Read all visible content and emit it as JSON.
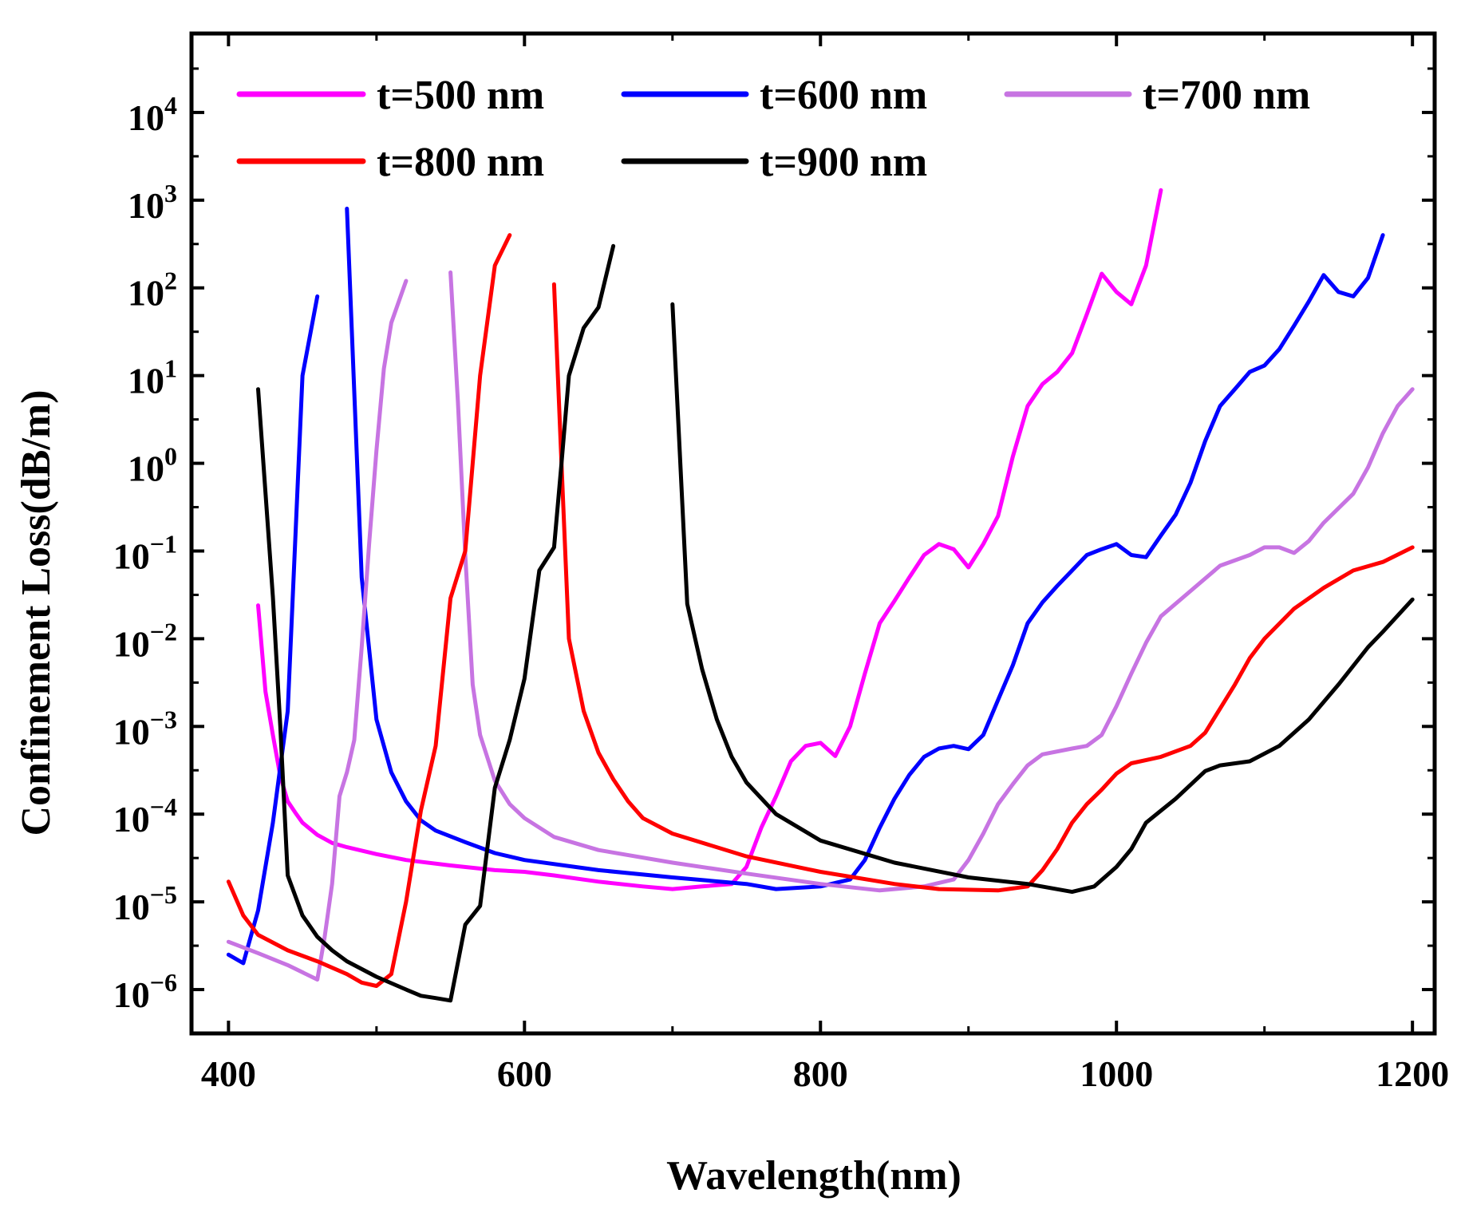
{
  "chart_data": {
    "type": "line",
    "title": "",
    "xlabel": "Wavelength(nm)",
    "ylabel": "Confinement Loss(dB/m)",
    "xlim": [
      375,
      1215
    ],
    "ylim_log10": [
      -6.5,
      4.9
    ],
    "yscale": "log",
    "x_ticks": [
      400,
      600,
      800,
      1000,
      1200
    ],
    "x_tick_labels": [
      "400",
      "600",
      "800",
      "1000",
      "1200"
    ],
    "y_ticks_log10": [
      -6,
      -5,
      -4,
      -3,
      -2,
      -1,
      0,
      1,
      2,
      3,
      4
    ],
    "y_tick_base": "10",
    "y_tick_exponents": [
      "−6",
      "−5",
      "−4",
      "−3",
      "−2",
      "−1",
      "0",
      "1",
      "2",
      "3",
      "4"
    ],
    "legend_position": "top",
    "series": [
      {
        "name": "t=500 nm",
        "color": "#ff00ff",
        "segments": [
          [
            [
              420,
              0.024
            ],
            [
              425,
              0.0025
            ],
            [
              430,
              0.0008
            ],
            [
              435,
              0.00027
            ],
            [
              440,
              0.00014
            ],
            [
              445,
              0.000105
            ],
            [
              450,
              8e-05
            ],
            [
              460,
              5.8e-05
            ],
            [
              470,
              4.7e-05
            ],
            [
              480,
              4.2e-05
            ],
            [
              500,
              3.5e-05
            ],
            [
              520,
              3e-05
            ],
            [
              550,
              2.6e-05
            ],
            [
              580,
              2.3e-05
            ],
            [
              600,
              2.2e-05
            ],
            [
              620,
              2e-05
            ],
            [
              650,
              1.7e-05
            ],
            [
              680,
              1.5e-05
            ],
            [
              700,
              1.4e-05
            ],
            [
              720,
              1.5e-05
            ],
            [
              740,
              1.6e-05
            ],
            [
              750,
              2.5e-05
            ],
            [
              760,
              7e-05
            ],
            [
              770,
              0.00016
            ],
            [
              780,
              0.0004
            ],
            [
              790,
              0.0006
            ],
            [
              800,
              0.00065
            ],
            [
              810,
              0.00046
            ],
            [
              820,
              0.001
            ],
            [
              830,
              0.004
            ],
            [
              840,
              0.015
            ],
            [
              850,
              0.027
            ],
            [
              860,
              0.05
            ],
            [
              870,
              0.09
            ],
            [
              880,
              0.12
            ],
            [
              890,
              0.105
            ],
            [
              900,
              0.065
            ],
            [
              910,
              0.12
            ],
            [
              920,
              0.25
            ],
            [
              930,
              1.2
            ],
            [
              940,
              4.5
            ],
            [
              950,
              8
            ],
            [
              960,
              11.0
            ],
            [
              970,
              18.0
            ],
            [
              980,
              50.0
            ],
            [
              990,
              145.0
            ],
            [
              1000,
              90.0
            ],
            [
              1010,
              65.0
            ],
            [
              1020,
              180.0
            ],
            [
              1030,
              1300.0
            ]
          ]
        ]
      },
      {
        "name": "t=600 nm",
        "color": "#0000ff",
        "segments": [
          [
            [
              400,
              2.5e-06
            ],
            [
              410,
              2e-06
            ],
            [
              420,
              8e-06
            ],
            [
              430,
              8e-05
            ],
            [
              440,
              0.0015
            ],
            [
              450,
              10.0
            ],
            [
              460,
              80.0
            ]
          ],
          [
            [
              480,
              800.0
            ],
            [
              490,
              0.05
            ],
            [
              500,
              0.0012
            ],
            [
              510,
              0.0003
            ],
            [
              520,
              0.00014
            ],
            [
              530,
              8.5e-05
            ],
            [
              540,
              6.5e-05
            ],
            [
              560,
              4.8e-05
            ],
            [
              580,
              3.6e-05
            ],
            [
              600,
              3e-05
            ],
            [
              650,
              2.3e-05
            ],
            [
              700,
              1.9e-05
            ],
            [
              750,
              1.6e-05
            ],
            [
              770,
              1.4e-05
            ],
            [
              800,
              1.5e-05
            ],
            [
              820,
              1.8e-05
            ],
            [
              830,
              3e-05
            ],
            [
              840,
              7e-05
            ],
            [
              850,
              0.00015
            ],
            [
              860,
              0.00028
            ],
            [
              870,
              0.00045
            ],
            [
              880,
              0.00056
            ],
            [
              890,
              0.0006
            ],
            [
              900,
              0.00055
            ],
            [
              910,
              0.0008
            ],
            [
              920,
              0.002
            ],
            [
              930,
              0.005
            ],
            [
              940,
              0.015
            ],
            [
              950,
              0.026
            ],
            [
              960,
              0.04
            ],
            [
              970,
              0.06
            ],
            [
              980,
              0.09
            ],
            [
              990,
              0.105
            ],
            [
              1000,
              0.12
            ],
            [
              1010,
              0.09
            ],
            [
              1020,
              0.085
            ],
            [
              1030,
              0.15
            ],
            [
              1040,
              0.26
            ],
            [
              1050,
              0.6
            ],
            [
              1060,
              1.8
            ],
            [
              1070,
              4.5
            ],
            [
              1080,
              7
            ],
            [
              1090,
              11.0
            ],
            [
              1100,
              13.0
            ],
            [
              1110,
              20.0
            ],
            [
              1120,
              37.0
            ],
            [
              1130,
              70.0
            ],
            [
              1140,
              140.0
            ],
            [
              1150,
              90.0
            ],
            [
              1160,
              80.0
            ],
            [
              1170,
              130.0
            ],
            [
              1180,
              400.0
            ]
          ]
        ]
      },
      {
        "name": "t=700 nm",
        "color": "#c774e2",
        "segments": [
          [
            [
              400,
              3.5e-06
            ],
            [
              420,
              2.6e-06
            ],
            [
              440,
              1.9e-06
            ],
            [
              460,
              1.3e-06
            ],
            [
              465,
              4e-06
            ],
            [
              470,
              1.6e-05
            ],
            [
              475,
              0.00016
            ],
            [
              480,
              0.0003
            ],
            [
              485,
              0.0007
            ],
            [
              490,
              0.008
            ],
            [
              495,
              0.12
            ],
            [
              500,
              1.4
            ],
            [
              505,
              12.0
            ],
            [
              510,
              40.0
            ],
            [
              520,
              120.0
            ]
          ],
          [
            [
              550,
              150.0
            ],
            [
              555,
              5
            ],
            [
              560,
              0.09
            ],
            [
              565,
              0.003
            ],
            [
              570,
              0.0008
            ],
            [
              580,
              0.00024
            ],
            [
              590,
              0.00013
            ],
            [
              600,
              9e-05
            ],
            [
              620,
              5.5e-05
            ],
            [
              650,
              3.9e-05
            ],
            [
              700,
              2.8e-05
            ],
            [
              750,
              2.1e-05
            ],
            [
              800,
              1.6e-05
            ],
            [
              840,
              1.35e-05
            ],
            [
              870,
              1.5e-05
            ],
            [
              890,
              1.8e-05
            ],
            [
              900,
              3e-05
            ],
            [
              910,
              6e-05
            ],
            [
              920,
              0.00013
            ],
            [
              930,
              0.00022
            ],
            [
              940,
              0.00036
            ],
            [
              950,
              0.00048
            ],
            [
              970,
              0.00056
            ],
            [
              980,
              0.0006
            ],
            [
              990,
              0.0008
            ],
            [
              1000,
              0.0017
            ],
            [
              1010,
              0.004
            ],
            [
              1020,
              0.009
            ],
            [
              1030,
              0.018
            ],
            [
              1050,
              0.035
            ],
            [
              1070,
              0.068
            ],
            [
              1090,
              0.09
            ],
            [
              1100,
              0.11
            ],
            [
              1110,
              0.11
            ],
            [
              1120,
              0.095
            ],
            [
              1130,
              0.13
            ],
            [
              1140,
              0.21
            ],
            [
              1160,
              0.45
            ],
            [
              1170,
              0.9
            ],
            [
              1180,
              2.2
            ],
            [
              1190,
              4.5
            ],
            [
              1200,
              7
            ]
          ]
        ]
      },
      {
        "name": "t=800 nm",
        "color": "#ff0000",
        "segments": [
          [
            [
              400,
              1.7e-05
            ],
            [
              410,
              7e-06
            ],
            [
              420,
              4.2e-06
            ],
            [
              440,
              2.8e-06
            ],
            [
              460,
              2.1e-06
            ],
            [
              480,
              1.5e-06
            ],
            [
              490,
              1.2e-06
            ],
            [
              500,
              1.1e-06
            ],
            [
              510,
              1.5e-06
            ],
            [
              520,
              1e-05
            ],
            [
              530,
              0.00011
            ],
            [
              540,
              0.0006
            ],
            [
              550,
              0.029
            ],
            [
              560,
              0.1
            ],
            [
              570,
              10.0
            ],
            [
              580,
              180.0
            ],
            [
              590,
              400.0
            ]
          ],
          [
            [
              620,
              110.0
            ],
            [
              625,
              1
            ],
            [
              630,
              0.01
            ],
            [
              640,
              0.0015
            ],
            [
              650,
              0.0005
            ],
            [
              660,
              0.00025
            ],
            [
              670,
              0.00014
            ],
            [
              680,
              9e-05
            ],
            [
              700,
              6e-05
            ],
            [
              750,
              3.3e-05
            ],
            [
              800,
              2.2e-05
            ],
            [
              850,
              1.6e-05
            ],
            [
              880,
              1.4e-05
            ],
            [
              920,
              1.35e-05
            ],
            [
              940,
              1.5e-05
            ],
            [
              950,
              2.3e-05
            ],
            [
              960,
              4e-05
            ],
            [
              970,
              8e-05
            ],
            [
              980,
              0.00013
            ],
            [
              990,
              0.00019
            ],
            [
              1000,
              0.00029
            ],
            [
              1010,
              0.00038
            ],
            [
              1030,
              0.00045
            ],
            [
              1050,
              0.0006
            ],
            [
              1060,
              0.00085
            ],
            [
              1070,
              0.0016
            ],
            [
              1080,
              0.003
            ],
            [
              1090,
              0.006
            ],
            [
              1100,
              0.01
            ],
            [
              1120,
              0.022
            ],
            [
              1140,
              0.038
            ],
            [
              1160,
              0.06
            ],
            [
              1180,
              0.075
            ],
            [
              1200,
              0.11
            ]
          ]
        ]
      },
      {
        "name": "t=900 nm",
        "color": "#000000",
        "segments": [
          [
            [
              420,
              7
            ],
            [
              430,
              0.03
            ],
            [
              435,
              0.001
            ],
            [
              440,
              2e-05
            ],
            [
              450,
              7e-06
            ],
            [
              460,
              4e-06
            ],
            [
              470,
              2.8e-06
            ],
            [
              480,
              2.1e-06
            ],
            [
              500,
              1.4e-06
            ],
            [
              520,
              1e-06
            ],
            [
              530,
              8.5e-07
            ],
            [
              540,
              8e-07
            ],
            [
              550,
              7.5e-07
            ],
            [
              560,
              5.5e-06
            ],
            [
              570,
              9e-06
            ],
            [
              580,
              0.0002
            ],
            [
              590,
              0.0007
            ],
            [
              600,
              0.0035
            ],
            [
              610,
              0.06
            ],
            [
              620,
              0.11
            ],
            [
              625,
              1
            ],
            [
              630,
              10.0
            ],
            [
              640,
              35.0
            ],
            [
              650,
              60.0
            ],
            [
              660,
              300.0
            ]
          ],
          [
            [
              700,
              65.0
            ],
            [
              710,
              0.025
            ],
            [
              720,
              0.0045
            ],
            [
              730,
              0.0012
            ],
            [
              740,
              0.00045
            ],
            [
              750,
              0.00023
            ],
            [
              770,
              0.0001
            ],
            [
              800,
              5e-05
            ],
            [
              850,
              2.8e-05
            ],
            [
              900,
              1.9e-05
            ],
            [
              940,
              1.6e-05
            ],
            [
              970,
              1.3e-05
            ],
            [
              985,
              1.5e-05
            ],
            [
              1000,
              2.5e-05
            ],
            [
              1010,
              4e-05
            ],
            [
              1020,
              8e-05
            ],
            [
              1040,
              0.00015
            ],
            [
              1060,
              0.00031
            ],
            [
              1070,
              0.00036
            ],
            [
              1090,
              0.0004
            ],
            [
              1110,
              0.0006
            ],
            [
              1130,
              0.0012
            ],
            [
              1150,
              0.003
            ],
            [
              1170,
              0.008
            ],
            [
              1180,
              0.012
            ],
            [
              1200,
              0.028
            ]
          ]
        ]
      }
    ]
  }
}
